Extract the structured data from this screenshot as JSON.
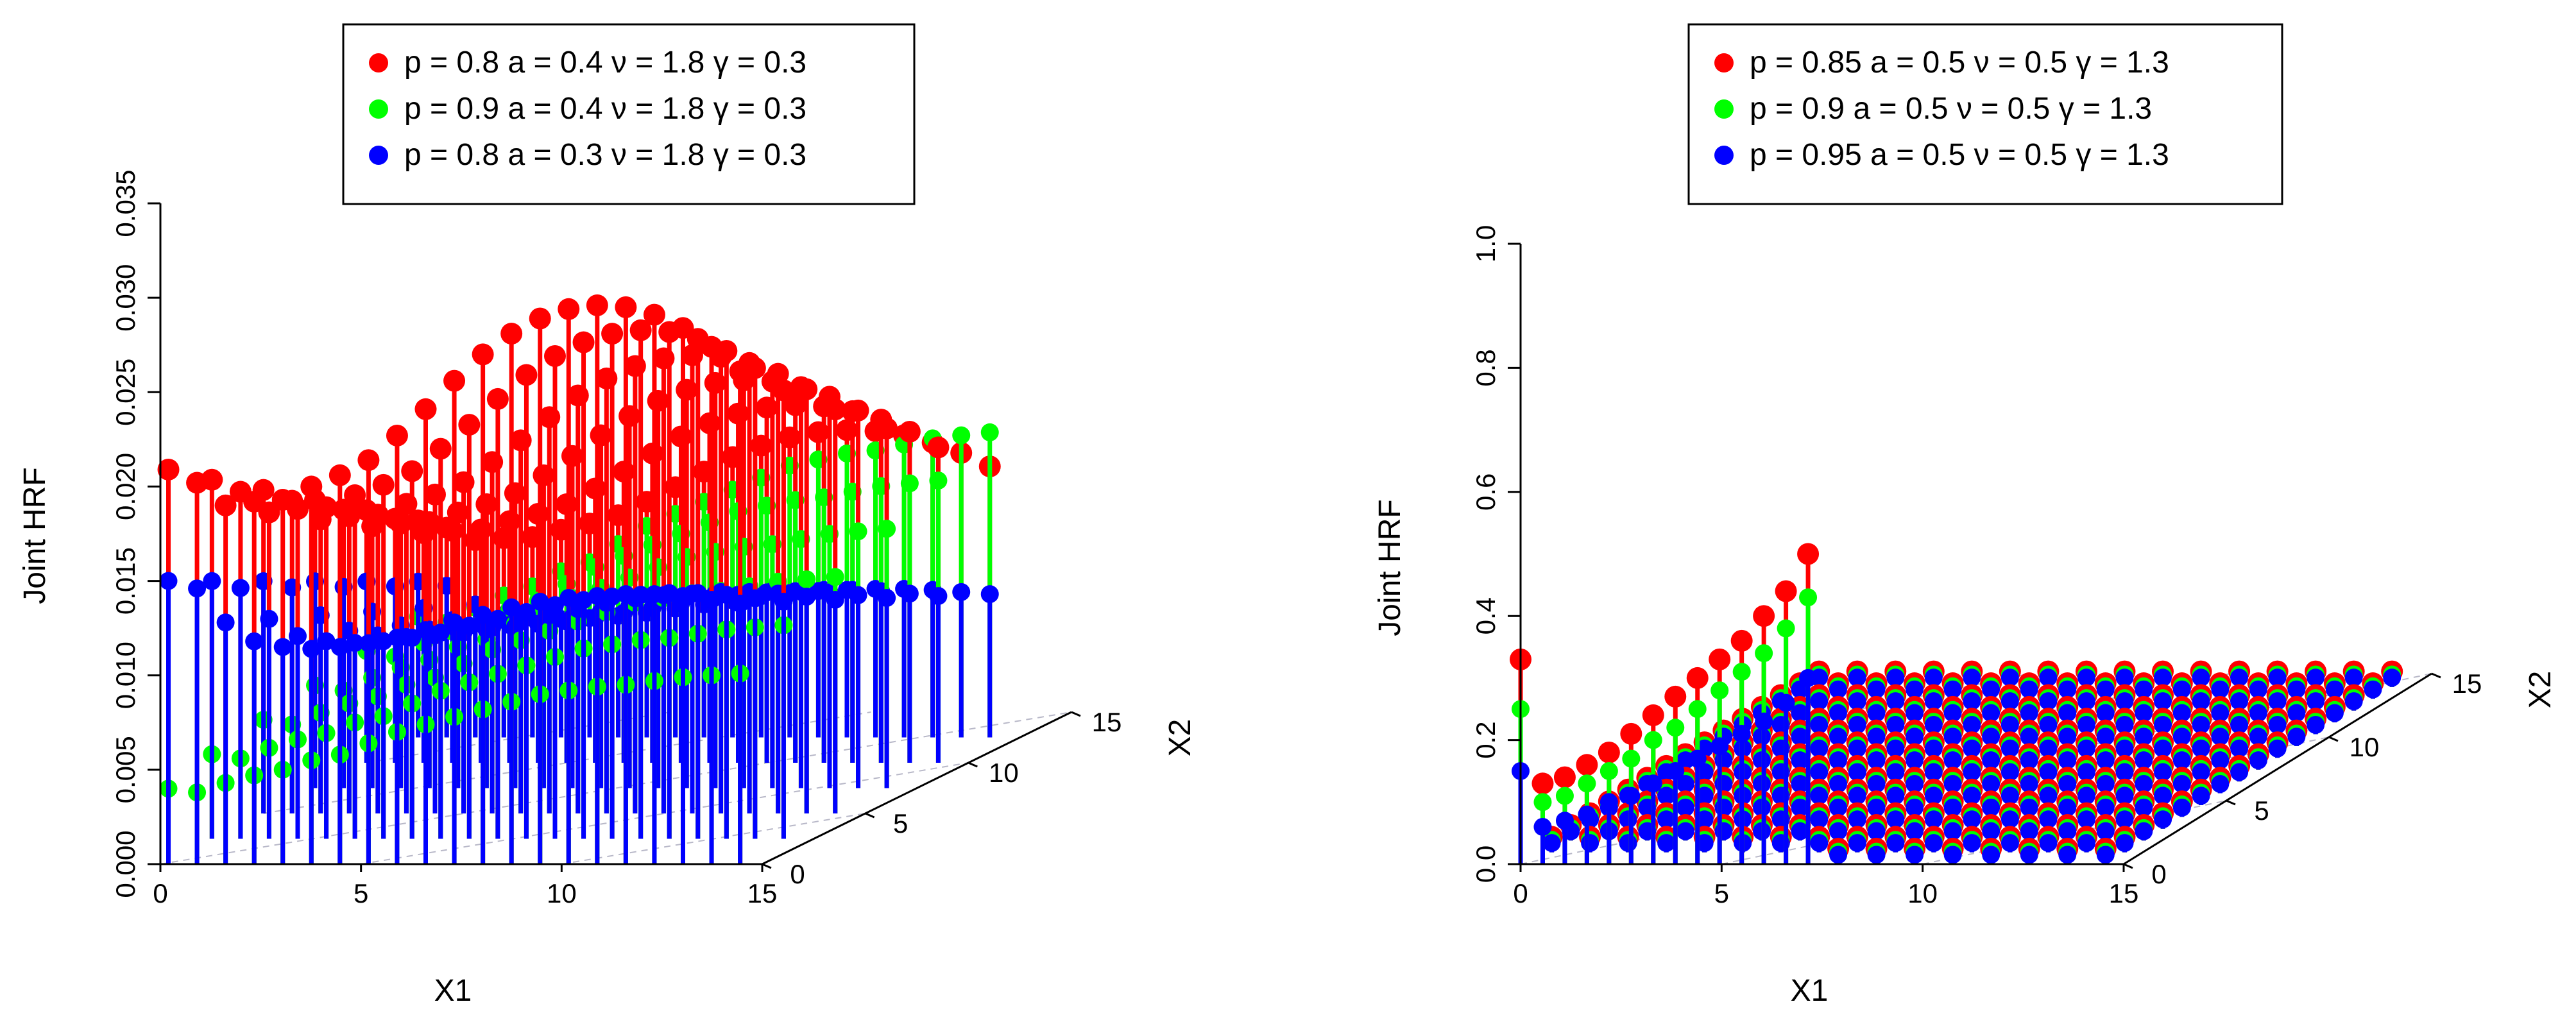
{
  "chart_data": [
    {
      "type": "3d-stem",
      "xlabel": "X1",
      "ylabel": "X2",
      "zlabel": "Joint HRF",
      "x_ticks": [
        "0",
        "5",
        "10",
        "15"
      ],
      "y_ticks": [
        "0",
        "5",
        "10",
        "15"
      ],
      "z_ticks": [
        "0.000",
        "0.005",
        "0.010",
        "0.015",
        "0.020",
        "0.025",
        "0.030",
        "0.035"
      ],
      "xlim": [
        0,
        15
      ],
      "ylim": [
        0,
        15
      ],
      "zlim": [
        0,
        0.035
      ],
      "grid": "X1-X2 base plane, diagonal",
      "legend_position": "top-center",
      "series": [
        {
          "name": "p = 0.8  a = 0.4  ν = 1.8  γ = 0.3",
          "color": "#ff0000",
          "front_row_values": [
            0.0209,
            0.0202,
            0.019,
            0.0192,
            0.0193,
            0.02,
            0.0206,
            0.0214,
            0.0227,
            0.0241,
            0.0256,
            0.027,
            0.0281,
            0.0289,
            0.0294,
            0.0296,
            0.0295,
            0.0291,
            0.0284,
            0.0274,
            0.0261
          ]
        },
        {
          "name": "p = 0.9  a = 0.4  ν = 1.8  γ = 0.3",
          "color": "#00ff00",
          "front_row_values": [
            0.004,
            0.0038,
            0.0043,
            0.0047,
            0.005,
            0.0055,
            0.0058,
            0.0064,
            0.007,
            0.0074,
            0.0078,
            0.0082,
            0.0086,
            0.009,
            0.0092,
            0.0094,
            0.0095,
            0.0097,
            0.0099,
            0.01,
            0.0101
          ]
        },
        {
          "name": "p = 0.8  a = 0.3  ν = 1.8  γ = 0.3",
          "color": "#0000ff",
          "front_row_values": [
            0.015,
            0.0146,
            0.0128,
            0.0118,
            0.0115,
            0.0114,
            0.0115,
            0.0117,
            0.012,
            0.0124,
            0.0128,
            0.0132,
            0.0136,
            0.0139,
            0.0141,
            0.0142,
            0.0143,
            0.0143,
            0.0142,
            0.014,
            0.0138
          ]
        }
      ]
    },
    {
      "type": "3d-stem",
      "xlabel": "X1",
      "ylabel": "X2",
      "zlabel": "Joint HRF",
      "x_ticks": [
        "0",
        "5",
        "10",
        "15"
      ],
      "y_ticks": [
        "0",
        "5",
        "10",
        "15"
      ],
      "z_ticks": [
        "0.0",
        "0.2",
        "0.4",
        "0.6",
        "0.8",
        "1.0"
      ],
      "xlim": [
        0,
        15
      ],
      "ylim": [
        0,
        15
      ],
      "zlim": [
        0,
        1.0
      ],
      "grid": "X1-X2 base plane, diagonal",
      "legend_position": "top-center",
      "series": [
        {
          "name": "p = 0.85  a = 0.5  ν = 0.5  γ = 1.3",
          "color": "#ff0000",
          "diagonal_values": [
            0.33,
            0.13,
            0.14,
            0.16,
            0.18,
            0.21,
            0.24,
            0.27,
            0.3,
            0.33,
            0.36,
            0.4,
            0.44,
            0.5
          ],
          "off_diagonal_value": 0.025
        },
        {
          "name": "p = 0.9    a = 0.5  ν = 0.5  γ = 1.3",
          "color": "#00ff00",
          "diagonal_values": [
            0.25,
            0.1,
            0.11,
            0.13,
            0.15,
            0.17,
            0.2,
            0.22,
            0.25,
            0.28,
            0.31,
            0.34,
            0.38,
            0.43
          ],
          "off_diagonal_value": 0.02
        },
        {
          "name": "p = 0.95  a = 0.5  ν = 0.5  γ = 1.3",
          "color": "#0000ff",
          "diagonal_values": [
            0.15,
            0.06,
            0.07,
            0.08,
            0.1,
            0.11,
            0.13,
            0.15,
            0.17,
            0.19,
            0.21,
            0.23,
            0.26,
            0.3
          ],
          "off_diagonal_value": 0.015
        }
      ]
    }
  ]
}
